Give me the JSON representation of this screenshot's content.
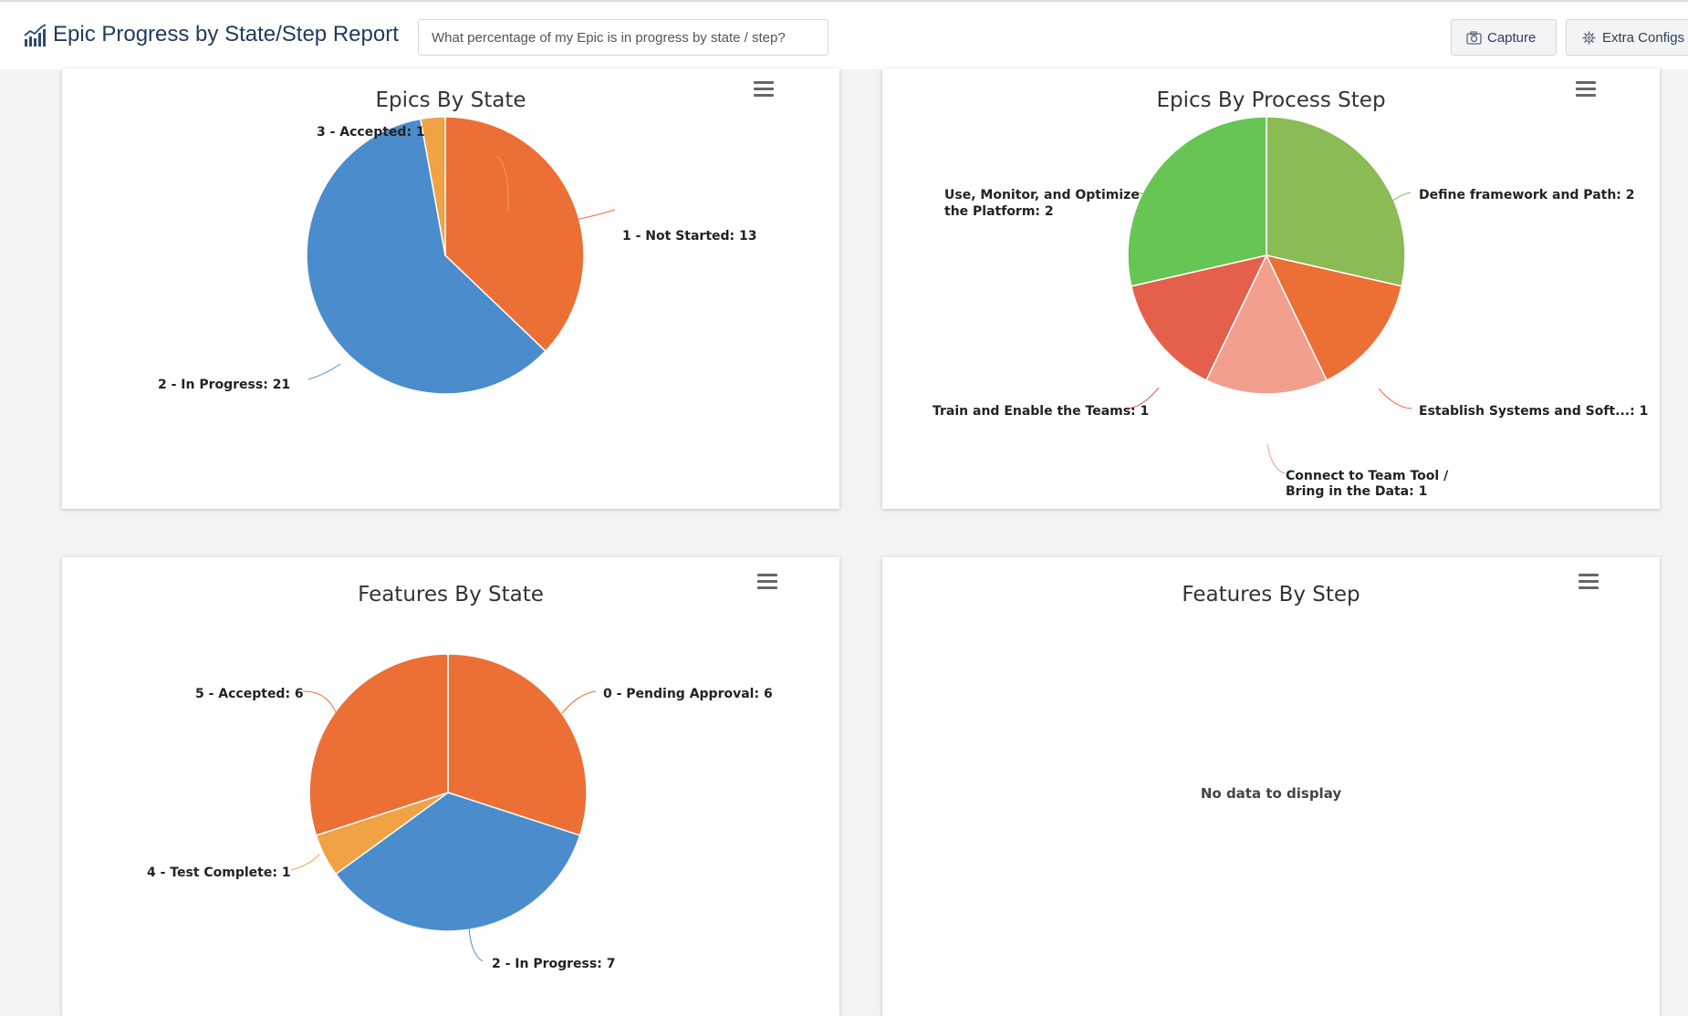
{
  "header": {
    "title": "Epic Progress by State/Step Report",
    "search_placeholder": "What percentage of my Epic is in progress by state / step?",
    "capture_label": "Capture",
    "extra_configs_label": "Extra Configs"
  },
  "colors": {
    "orange": "#ec6f36",
    "blue": "#4a8ccc",
    "light_orange": "#f0a244",
    "olive_green": "#8bbb54",
    "green": "#67c553",
    "salmon": "#f29f8e",
    "red": "#e5604c"
  },
  "charts": [
    {
      "id": "epics-by-state",
      "title": "Epics By State",
      "labels": [
        "3 - Accepted: 1",
        "1 - Not Started: 13",
        "2 - In Progress: 21"
      ]
    },
    {
      "id": "epics-by-process-step",
      "title": "Epics By Process Step",
      "labels": [
        "Use, Monitor, and Optimize",
        "the Platform: 2",
        "Define framework and Path: 2",
        "Establish Systems and Soft...: 1",
        "Train and Enable the Teams: 1",
        "Connect to Team Tool /",
        "Bring in the Data: 1"
      ]
    },
    {
      "id": "features-by-state",
      "title": "Features By State",
      "labels": [
        "5 - Accepted: 6",
        "0 - Pending Approval: 6",
        "4 - Test Complete: 1",
        "2 - In Progress: 7"
      ]
    },
    {
      "id": "features-by-step",
      "title": "Features By Step",
      "no_data": "No data to display"
    }
  ],
  "chart_data": [
    {
      "type": "pie",
      "title": "Epics By State",
      "slices": [
        {
          "name": "1 - Not Started",
          "value": 13,
          "color": "#ec6f36"
        },
        {
          "name": "2 - In Progress",
          "value": 21,
          "color": "#4a8ccc"
        },
        {
          "name": "3 - Accepted",
          "value": 1,
          "color": "#f0a244"
        }
      ]
    },
    {
      "type": "pie",
      "title": "Epics By Process Step",
      "slices": [
        {
          "name": "Define framework and Path",
          "value": 2,
          "color": "#8bbb54"
        },
        {
          "name": "Establish Systems and Soft...",
          "value": 1,
          "color": "#ec6f36"
        },
        {
          "name": "Connect to Team Tool / Bring in the Data",
          "value": 1,
          "color": "#f29f8e"
        },
        {
          "name": "Train and Enable the Teams",
          "value": 1,
          "color": "#e5604c"
        },
        {
          "name": "Use, Monitor, and Optimize the Platform",
          "value": 2,
          "color": "#67c553"
        }
      ]
    },
    {
      "type": "pie",
      "title": "Features By State",
      "slices": [
        {
          "name": "0 - Pending Approval",
          "value": 6,
          "color": "#ec6f36"
        },
        {
          "name": "2 - In Progress",
          "value": 7,
          "color": "#4a8ccc"
        },
        {
          "name": "4 - Test Complete",
          "value": 1,
          "color": "#f0a244"
        },
        {
          "name": "5 - Accepted",
          "value": 6,
          "color": "#ec6f36"
        }
      ]
    },
    {
      "type": "pie",
      "title": "Features By Step",
      "slices": []
    }
  ]
}
